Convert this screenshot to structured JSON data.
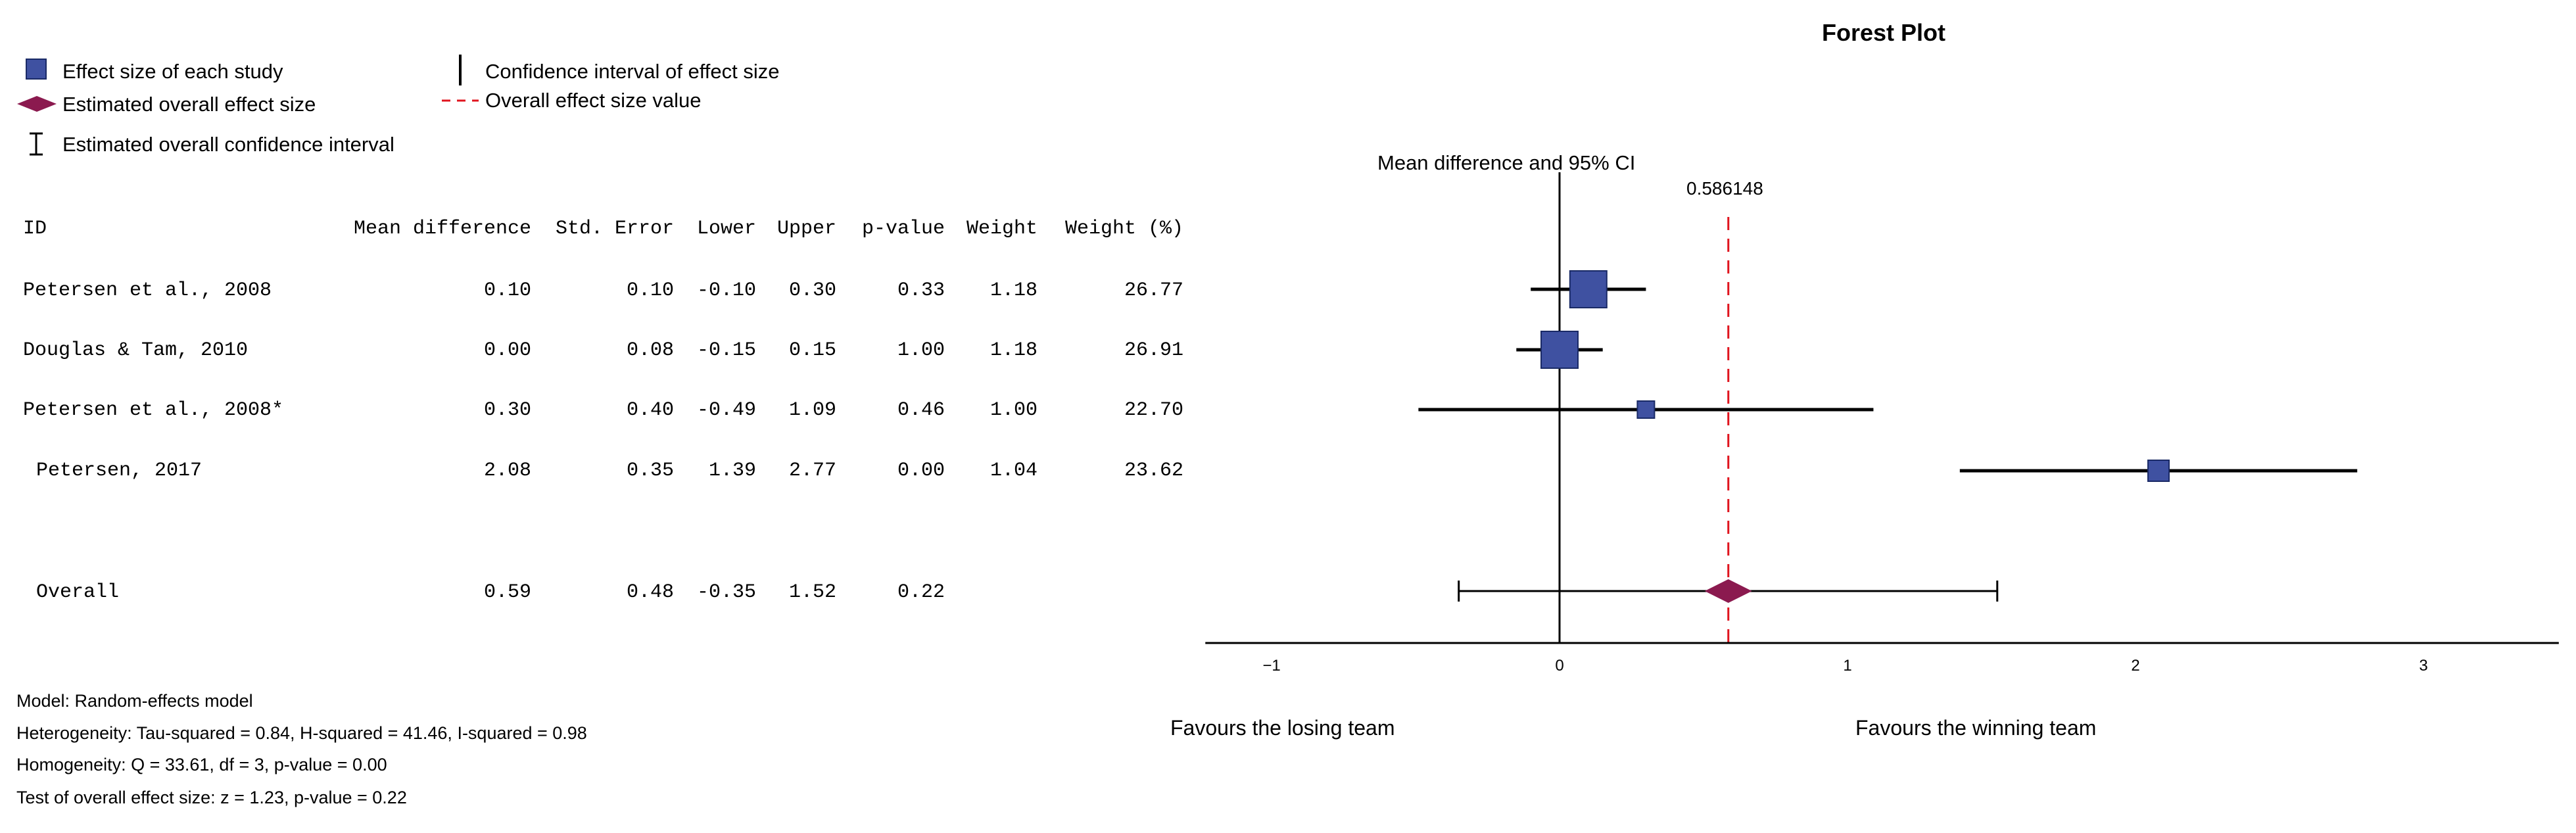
{
  "chart_data": {
    "type": "forest",
    "title": "Forest Plot",
    "subtitle": "Mean difference and 95% CI",
    "overall_value_label": "0.586148",
    "legend": {
      "effect_size": "Effect size of each study",
      "estimated_overall": "Estimated overall effect size",
      "estimated_ci": "Estimated overall confidence interval",
      "ci": "Confidence interval of effect size",
      "overall_value": "Overall effect size value"
    },
    "table_headers": [
      "ID",
      "Mean difference",
      "Std. Error",
      "Lower",
      "Upper",
      "p-value",
      "Weight",
      "Weight (%)"
    ],
    "studies": [
      {
        "id": "Petersen et al., 2008",
        "md": "0.10",
        "se": "0.10",
        "lower": "-0.10",
        "upper": "0.30",
        "p": "0.33",
        "weight": "1.18",
        "weight_pct": "26.77",
        "est": 0.1,
        "lo": -0.1,
        "hi": 0.3,
        "w": 26.77
      },
      {
        "id": "Douglas & Tam, 2010",
        "md": "0.00",
        "se": "0.08",
        "lower": "-0.15",
        "upper": "0.15",
        "p": "1.00",
        "weight": "1.18",
        "weight_pct": "26.91",
        "est": 0.0,
        "lo": -0.15,
        "hi": 0.15,
        "w": 26.91
      },
      {
        "id": "Petersen et al., 2008*",
        "md": "0.30",
        "se": "0.40",
        "lower": "-0.49",
        "upper": "1.09",
        "p": "0.46",
        "weight": "1.00",
        "weight_pct": "22.70",
        "est": 0.3,
        "lo": -0.49,
        "hi": 1.09,
        "w": 22.7
      },
      {
        "id": "Petersen, 2017",
        "md": "2.08",
        "se": "0.35",
        "lower": "1.39",
        "upper": "2.77",
        "p": "0.00",
        "weight": "1.04",
        "weight_pct": "23.62",
        "est": 2.08,
        "lo": 1.39,
        "hi": 2.77,
        "w": 23.62
      }
    ],
    "overall": {
      "id": "Overall",
      "md": "0.59",
      "se": "0.48",
      "lower": "-0.35",
      "upper": "1.52",
      "p": "0.22",
      "est": 0.586148,
      "lo": -0.35,
      "hi": 1.52
    },
    "x_ticks": [
      -1,
      0,
      1,
      2,
      3
    ],
    "x_tick_labels": [
      "−1",
      "0",
      "1",
      "2",
      "3"
    ],
    "xlim": [
      -1.23,
      3.47
    ],
    "favours_left": "Favours the losing team",
    "favours_right": "Favours the winning team",
    "model_lines": [
      "Model: Random-effects model",
      "Heterogeneity: Tau-squared = 0.84, H-squared = 41.46, I-squared = 0.98",
      "Homogeneity: Q = 33.61, df = 3, p-value = 0.00",
      "Test of overall effect size: z = 1.23, p-value = 0.22"
    ],
    "colors": {
      "box": "#3f51a1",
      "diamond": "#8b1a4f",
      "ref_line": "#e0141e",
      "ink": "#000000"
    }
  }
}
